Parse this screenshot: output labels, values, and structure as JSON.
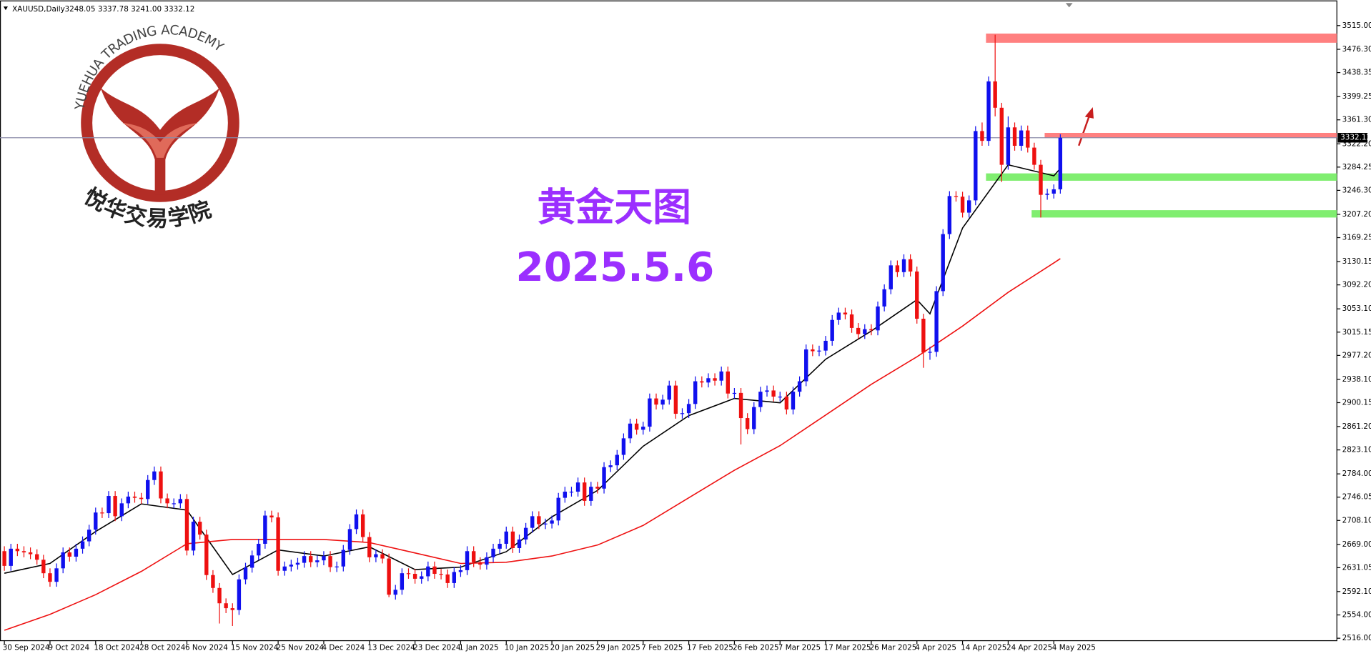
{
  "chart_data": {
    "type": "candlestick",
    "symbol": "XAUUSD,Daily",
    "ohlc_text": "3248.05 3337.78 3241.00 3332.12",
    "title": "黄金天图",
    "subtitle": "2025.5.6",
    "logo_text": "YUEHUA TRADING ACADEMY",
    "logo_name": "悦华交易学院",
    "up_color": "#1010ee",
    "down_color": "#ee1010",
    "ylim": [
      2512,
      3556
    ],
    "yticks": [
      {
        "value": 3515,
        "label": "3515.00"
      },
      {
        "value": 3476.3,
        "label": "3476.30"
      },
      {
        "value": 3438.35,
        "label": "3438.35"
      },
      {
        "value": 3399.25,
        "label": "3399.25"
      },
      {
        "value": 3361.3,
        "label": "3361.30"
      },
      {
        "value": 3322.2,
        "label": "3322.20"
      },
      {
        "value": 3284.25,
        "label": "3284.25"
      },
      {
        "value": 3246.3,
        "label": "3246.30"
      },
      {
        "value": 3207.2,
        "label": "3207.20"
      },
      {
        "value": 3169.25,
        "label": "3169.25"
      },
      {
        "value": 3130.15,
        "label": "3130.15"
      },
      {
        "value": 3092.2,
        "label": "3092.20"
      },
      {
        "value": 3053.1,
        "label": "3053.10"
      },
      {
        "value": 3015.15,
        "label": "3015.15"
      },
      {
        "value": 2977.2,
        "label": "2977.20"
      },
      {
        "value": 2938.1,
        "label": "2938.10"
      },
      {
        "value": 2900.15,
        "label": "2900.15"
      },
      {
        "value": 2861.2,
        "label": "2861.20"
      },
      {
        "value": 2823.1,
        "label": "2823.10"
      },
      {
        "value": 2784,
        "label": "2784.00"
      },
      {
        "value": 2746.05,
        "label": "2746.05"
      },
      {
        "value": 2708.1,
        "label": "2708.10"
      },
      {
        "value": 2669,
        "label": "2669.00"
      },
      {
        "value": 2631.05,
        "label": "2631.05"
      },
      {
        "value": 2592.1,
        "label": "2592.10"
      },
      {
        "value": 2554,
        "label": "2554.00"
      },
      {
        "value": 2516,
        "label": "2516.00"
      }
    ],
    "x": [
      "30 Sep 2024",
      "1 Oct 2024",
      "2 Oct 2024",
      "3 Oct 2024",
      "4 Oct 2024",
      "7 Oct 2024",
      "8 Oct 2024",
      "9 Oct 2024",
      "10 Oct 2024",
      "11 Oct 2024",
      "14 Oct 2024",
      "15 Oct 2024",
      "16 Oct 2024",
      "17 Oct 2024",
      "18 Oct 2024",
      "21 Oct 2024",
      "22 Oct 2024",
      "23 Oct 2024",
      "24 Oct 2024",
      "25 Oct 2024",
      "27 Oct 2024",
      "28 Oct 2024",
      "29 Oct 2024",
      "30 Oct 2024",
      "31 Oct 2024",
      "1 Nov 2024",
      "4 Nov 2024",
      "5 Nov 2024",
      "6 Nov 2024",
      "7 Nov 2024",
      "8 Nov 2024",
      "11 Nov 2024",
      "12 Nov 2024",
      "13 Nov 2024",
      "14 Nov 2024",
      "15 Nov 2024",
      "18 Nov 2024",
      "19 Nov 2024",
      "20 Nov 2024",
      "21 Nov 2024",
      "22 Nov 2024",
      "24 Nov 2024",
      "25 Nov 2024",
      "26 Nov 2024",
      "27 Nov 2024",
      "28 Nov 2024",
      "29 Nov 2024",
      "2 Dec 2024",
      "3 Dec 2024",
      "4 Dec 2024",
      "5 Dec 2024",
      "6 Dec 2024",
      "9 Dec 2024",
      "10 Dec 2024",
      "11 Dec 2024",
      "12 Dec 2024",
      "13 Dec 2024",
      "16 Dec 2024",
      "17 Dec 2024",
      "18 Dec 2024",
      "19 Dec 2024",
      "20 Dec 2024",
      "22 Dec 2024",
      "23 Dec 2024",
      "24 Dec 2024",
      "26 Dec 2024",
      "27 Dec 2024",
      "29 Dec 2024",
      "30 Dec 2024",
      "31 Dec 2024",
      "1 Jan 2025",
      "2 Jan 2025",
      "3 Jan 2025",
      "6 Jan 2025",
      "7 Jan 2025",
      "8 Jan 2025",
      "9 Jan 2025",
      "10 Jan 2025",
      "13 Jan 2025",
      "14 Jan 2025",
      "15 Jan 2025",
      "16 Jan 2025",
      "17 Jan 2025",
      "19 Jan 2025",
      "20 Jan 2025",
      "21 Jan 2025",
      "22 Jan 2025",
      "23 Jan 2025",
      "24 Jan 2025",
      "27 Jan 2025",
      "28 Jan 2025",
      "29 Jan 2025",
      "30 Jan 2025",
      "31 Jan 2025",
      "3 Feb 2025",
      "4 Feb 2025",
      "5 Feb 2025",
      "6 Feb 2025",
      "7 Feb 2025",
      "10 Feb 2025",
      "11 Feb 2025",
      "12 Feb 2025",
      "13 Feb 2025",
      "14 Feb 2025",
      "16 Feb 2025",
      "17 Feb 2025",
      "18 Feb 2025",
      "19 Feb 2025",
      "20 Feb 2025",
      "21 Feb 2025",
      "24 Feb 2025",
      "25 Feb 2025",
      "26 Feb 2025",
      "27 Feb 2025",
      "28 Feb 2025",
      "3 Mar 2025",
      "4 Mar 2025",
      "5 Mar 2025",
      "6 Mar 2025",
      "7 Mar 2025",
      "10 Mar 2025",
      "11 Mar 2025",
      "12 Mar 2025",
      "13 Mar 2025",
      "14 Mar 2025",
      "16 Mar 2025",
      "17 Mar 2025",
      "18 Mar 2025",
      "19 Mar 2025",
      "20 Mar 2025",
      "21 Mar 2025",
      "24 Mar 2025",
      "25 Mar 2025",
      "26 Mar 2025",
      "27 Mar 2025",
      "28 Mar 2025",
      "31 Mar 2025",
      "1 Apr 2025",
      "2 Apr 2025",
      "3 Apr 2025",
      "4 Apr 2025",
      "7 Apr 2025",
      "8 Apr 2025",
      "9 Apr 2025",
      "10 Apr 2025",
      "11 Apr 2025",
      "13 Apr 2025",
      "14 Apr 2025",
      "15 Apr 2025",
      "16 Apr 2025",
      "17 Apr 2025",
      "21 Apr 2025",
      "22 Apr 2025",
      "23 Apr 2025",
      "24 Apr 2025",
      "25 Apr 2025",
      "28 Apr 2025",
      "29 Apr 2025",
      "30 Apr 2025",
      "1 May 2025",
      "2 May 2025",
      "4 May 2025",
      "5 May 2025"
    ],
    "open": [
      2658,
      2634,
      2662,
      2658,
      2656,
      2653,
      2644,
      2622,
      2608,
      2630,
      2656,
      2649,
      2662,
      2674,
      2693,
      2721,
      2720,
      2748,
      2715,
      2736,
      2747,
      2745,
      2743,
      2774,
      2788,
      2744,
      2736,
      2736,
      2743,
      2659,
      2706,
      2685,
      2619,
      2598,
      2573,
      2565,
      2562,
      2612,
      2631,
      2651,
      2670,
      2716,
      2713,
      2626,
      2633,
      2636,
      2639,
      2650,
      2640,
      2643,
      2650,
      2632,
      2633,
      2660,
      2694,
      2718,
      2681,
      2648,
      2653,
      2646,
      2587,
      2595,
      2622,
      2621,
      2613,
      2617,
      2633,
      2621,
      2620,
      2606,
      2624,
      2627,
      2658,
      2640,
      2636,
      2648,
      2662,
      2670,
      2690,
      2663,
      2677,
      2696,
      2715,
      2702,
      2703,
      2708,
      2745,
      2755,
      2755,
      2770,
      2740,
      2763,
      2760,
      2795,
      2798,
      2815,
      2842,
      2866,
      2856,
      2861,
      2907,
      2897,
      2905,
      2928,
      2882,
      2883,
      2898,
      2935,
      2933,
      2940,
      2936,
      2951,
      2915,
      2916,
      2875,
      2857,
      2893,
      2918,
      2920,
      2910,
      2910,
      2889,
      2918,
      2935,
      2987,
      2984,
      2985,
      3001,
      3035,
      3047,
      3044,
      3022,
      3012,
      3020,
      3018,
      3057,
      3085,
      3124,
      3113,
      3134,
      3114,
      3037,
      2982,
      2983,
      3082,
      3175,
      3237,
      3236,
      3210,
      3230,
      3343,
      3327,
      3424,
      3381,
      3288,
      3349,
      3319,
      3344,
      3316,
      3288,
      3239,
      3241,
      3248.05
    ],
    "high": [
      2666,
      2670,
      2670,
      2666,
      2664,
      2661,
      2652,
      2630,
      2638,
      2664,
      2664,
      2670,
      2682,
      2701,
      2729,
      2729,
      2756,
      2756,
      2744,
      2755,
      2755,
      2753,
      2782,
      2796,
      2796,
      2752,
      2744,
      2751,
      2751,
      2714,
      2714,
      2693,
      2627,
      2606,
      2581,
      2573,
      2620,
      2639,
      2659,
      2678,
      2724,
      2724,
      2721,
      2641,
      2644,
      2647,
      2658,
      2658,
      2651,
      2658,
      2658,
      2641,
      2668,
      2702,
      2726,
      2726,
      2689,
      2661,
      2661,
      2654,
      2603,
      2630,
      2630,
      2629,
      2625,
      2641,
      2641,
      2629,
      2628,
      2632,
      2635,
      2666,
      2666,
      2648,
      2656,
      2670,
      2678,
      2698,
      2698,
      2685,
      2704,
      2723,
      2723,
      2711,
      2716,
      2753,
      2763,
      2763,
      2778,
      2778,
      2771,
      2771,
      2803,
      2806,
      2823,
      2850,
      2874,
      2874,
      2869,
      2915,
      2915,
      2913,
      2936,
      2936,
      2891,
      2906,
      2943,
      2943,
      2948,
      2948,
      2959,
      2959,
      2924,
      2924,
      2883,
      2901,
      2926,
      2928,
      2928,
      2918,
      2918,
      2926,
      2943,
      2995,
      2995,
      2993,
      3009,
      3043,
      3055,
      3055,
      3052,
      3030,
      3028,
      3028,
      3065,
      3093,
      3132,
      3132,
      3142,
      3142,
      3122,
      3045,
      2991,
      3090,
      3183,
      3245,
      3245,
      3244,
      3238,
      3351,
      3357,
      3432,
      3500,
      3389,
      3367,
      3357,
      3352,
      3352,
      3324,
      3296,
      3249,
      3256,
      3337.78
    ],
    "low": [
      2626,
      2626,
      2650,
      2648,
      2645,
      2636,
      2614,
      2600,
      2600,
      2622,
      2641,
      2641,
      2654,
      2666,
      2685,
      2712,
      2712,
      2707,
      2707,
      2728,
      2737,
      2735,
      2735,
      2766,
      2736,
      2728,
      2728,
      2728,
      2651,
      2651,
      2677,
      2611,
      2590,
      2540,
      2557,
      2536,
      2554,
      2604,
      2623,
      2643,
      2662,
      2705,
      2618,
      2618,
      2625,
      2628,
      2631,
      2632,
      2632,
      2635,
      2624,
      2624,
      2625,
      2652,
      2686,
      2673,
      2640,
      2640,
      2638,
      2583,
      2579,
      2587,
      2613,
      2605,
      2605,
      2609,
      2613,
      2612,
      2598,
      2598,
      2616,
      2619,
      2632,
      2628,
      2628,
      2640,
      2654,
      2662,
      2655,
      2655,
      2669,
      2688,
      2694,
      2694,
      2695,
      2700,
      2737,
      2747,
      2747,
      2732,
      2732,
      2752,
      2752,
      2787,
      2790,
      2807,
      2834,
      2848,
      2848,
      2853,
      2889,
      2889,
      2897,
      2874,
      2874,
      2875,
      2890,
      2925,
      2925,
      2928,
      2928,
      2907,
      2907,
      2832,
      2849,
      2849,
      2885,
      2910,
      2902,
      2902,
      2881,
      2881,
      2910,
      2927,
      2976,
      2976,
      2977,
      2993,
      3027,
      3036,
      3014,
      3004,
      3004,
      3010,
      3010,
      3049,
      3077,
      3105,
      3105,
      3106,
      3029,
      2957,
      2970,
      2975,
      3074,
      3167,
      3228,
      3202,
      3202,
      3222,
      3319,
      3319,
      3367,
      3260,
      3280,
      3311,
      3311,
      3308,
      3280,
      3202,
      3231,
      3233,
      3241
    ],
    "close": [
      2634,
      2662,
      2658,
      2656,
      2653,
      2644,
      2622,
      2608,
      2630,
      2656,
      2649,
      2662,
      2674,
      2693,
      2721,
      2720,
      2748,
      2715,
      2736,
      2747,
      2745,
      2743,
      2774,
      2788,
      2744,
      2736,
      2736,
      2743,
      2659,
      2706,
      2685,
      2619,
      2598,
      2573,
      2565,
      2562,
      2612,
      2631,
      2651,
      2670,
      2716,
      2713,
      2626,
      2633,
      2636,
      2639,
      2650,
      2640,
      2643,
      2650,
      2632,
      2633,
      2660,
      2694,
      2718,
      2681,
      2648,
      2653,
      2646,
      2587,
      2595,
      2622,
      2621,
      2613,
      2617,
      2633,
      2621,
      2620,
      2606,
      2624,
      2627,
      2658,
      2640,
      2636,
      2648,
      2662,
      2670,
      2690,
      2663,
      2677,
      2696,
      2715,
      2702,
      2703,
      2708,
      2745,
      2755,
      2755,
      2770,
      2740,
      2763,
      2760,
      2795,
      2798,
      2815,
      2842,
      2866,
      2856,
      2861,
      2907,
      2897,
      2905,
      2928,
      2882,
      2883,
      2898,
      2935,
      2933,
      2940,
      2936,
      2951,
      2915,
      2916,
      2875,
      2857,
      2893,
      2918,
      2920,
      2910,
      2910,
      2889,
      2918,
      2935,
      2987,
      2984,
      2985,
      3001,
      3035,
      3047,
      3044,
      3022,
      3012,
      3020,
      3018,
      3057,
      3085,
      3124,
      3113,
      3134,
      3114,
      3037,
      2982,
      2983,
      3082,
      3175,
      3237,
      3236,
      3210,
      3230,
      3343,
      3327,
      3424,
      3381,
      3288,
      3349,
      3319,
      3344,
      3316,
      3288,
      3239,
      3241,
      3248,
      3332.12
    ],
    "lines": [
      {
        "color": "#000000",
        "x": [
          "30 Sep 2024",
          "9 Oct 2024",
          "18 Oct 2024",
          "28 Oct 2024",
          "6 Nov 2024",
          "15 Nov 2024",
          "25 Nov 2024",
          "4 Dec 2024",
          "13 Dec 2024",
          "23 Dec 2024",
          "1 Jan 2025",
          "10 Jan 2025",
          "20 Jan 2025",
          "29 Jan 2025",
          "7 Feb 2025",
          "17 Feb 2025",
          "26 Feb 2025",
          "7 Mar 2025",
          "17 Mar 2025",
          "26 Mar 2025",
          "4 Apr 2025",
          "8 Apr 2025",
          "14 Apr 2025",
          "24 Apr 2025",
          "4 May 2025",
          "5 May 2025"
        ],
        "values": [
          2622,
          2638,
          2690,
          2735,
          2725,
          2620,
          2660,
          2650,
          2665,
          2628,
          2632,
          2657,
          2714,
          2757,
          2829,
          2879,
          2907,
          2900,
          2971,
          3017,
          3068,
          3045,
          3185,
          3288,
          3270,
          3282
        ]
      },
      {
        "color": "#ee1111",
        "x": [
          "30 Sep 2024",
          "9 Oct 2024",
          "18 Oct 2024",
          "28 Oct 2024",
          "6 Nov 2024",
          "15 Nov 2024",
          "25 Nov 2024",
          "4 Dec 2024",
          "13 Dec 2024",
          "23 Dec 2024",
          "1 Jan 2025",
          "10 Jan 2025",
          "20 Jan 2025",
          "29 Jan 2025",
          "7 Feb 2025",
          "17 Feb 2025",
          "26 Feb 2025",
          "7 Mar 2025",
          "17 Mar 2025",
          "26 Mar 2025",
          "4 Apr 2025",
          "14 Apr 2025",
          "24 Apr 2025",
          "4 May 2025",
          "5 May 2025"
        ],
        "values": [
          2529,
          2555,
          2587,
          2625,
          2670,
          2677,
          2677,
          2677,
          2672,
          2655,
          2638,
          2640,
          2650,
          2668,
          2700,
          2745,
          2790,
          2830,
          2880,
          2930,
          2975,
          3025,
          3080,
          3128,
          3135
        ]
      }
    ],
    "levels": [
      {
        "from": "21 Apr 2025",
        "low": 3487,
        "high": 3502,
        "color": "#ff8080"
      },
      {
        "from": "2 May 2025",
        "low": 3332,
        "high": 3340,
        "color": "#ff8080"
      },
      {
        "from": "21 Apr 2025",
        "low": 3262,
        "high": 3274,
        "color": "#80ee70"
      },
      {
        "from": "30 Apr 2025",
        "low": 3202,
        "high": 3214,
        "color": "#80ee70"
      }
    ],
    "price_line_color": "#8a8aa8",
    "grid": false
  }
}
